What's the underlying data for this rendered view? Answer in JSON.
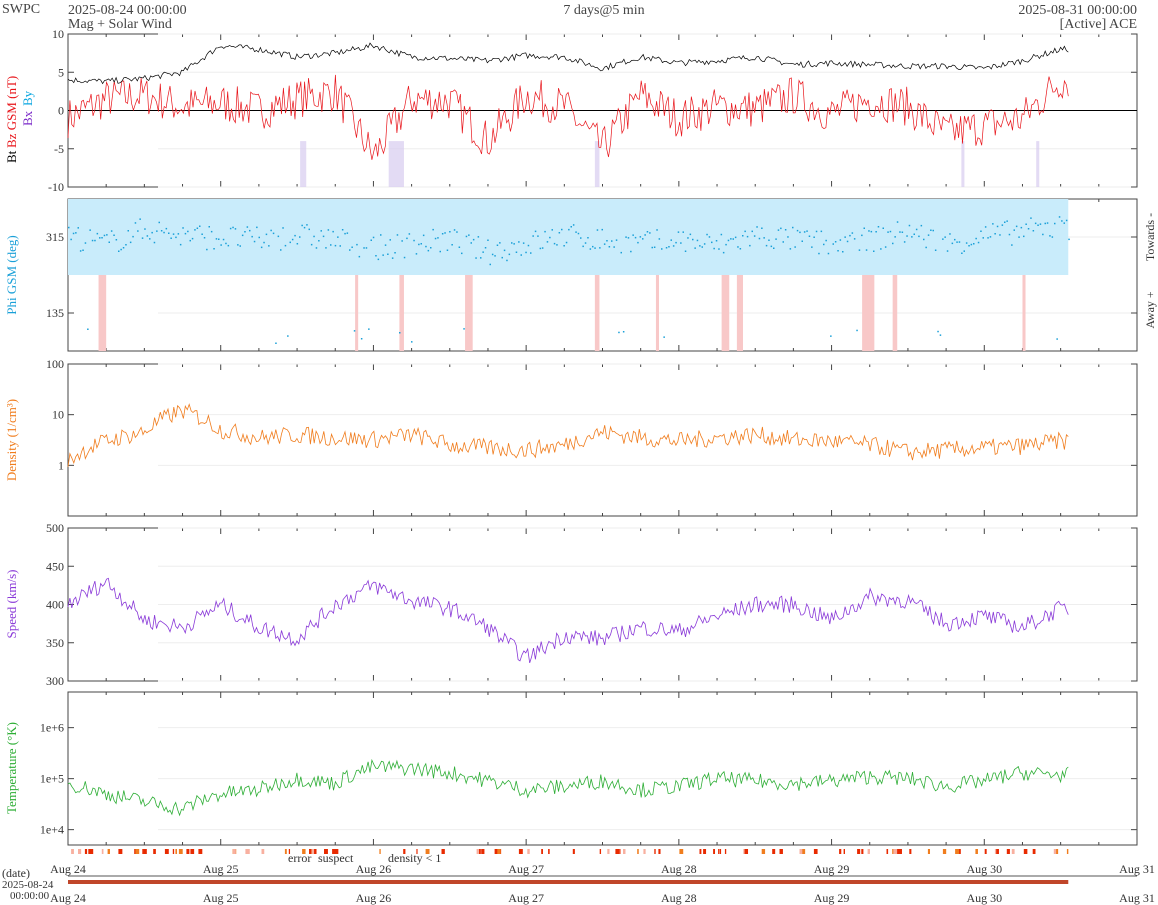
{
  "header": {
    "source": "SWPC",
    "start": "2025-08-24 00:00:00",
    "subtitle": "Mag + Solar Wind",
    "span": "7 days@5 min",
    "end": "2025-08-31 00:00:00",
    "instrument": "[Active] ACE"
  },
  "x_axis": {
    "ticks": [
      "Aug 24",
      "Aug 25",
      "Aug 26",
      "Aug 27",
      "Aug 28",
      "Aug 29",
      "Aug 30",
      "Aug 31"
    ],
    "date_label": "(date)",
    "date_value_1": "2025-08-24",
    "date_value_2": "00:00:00"
  },
  "legend": {
    "error": "error",
    "suspect": "suspect",
    "density": "density < 1"
  },
  "colors": {
    "bt": "#000000",
    "bz": "#e8141a",
    "bx": "#7a28c8",
    "by": "#0aa6e0",
    "phi": "#1aa0d8",
    "density": "#f07d1e",
    "speed": "#8a3ad8",
    "temp": "#2eae36"
  },
  "chart_data": [
    {
      "type": "line",
      "name": "mag",
      "ylabel_bt": "Bt",
      "ylabel_bz": "Bz GSM (nT)",
      "ylabel_bx": "Bx",
      "ylabel_by": "By",
      "ylim": [
        -10,
        10
      ],
      "yticks": [
        "10",
        "5",
        "0",
        "-5",
        "-10"
      ],
      "x": [
        0,
        0.25,
        0.5,
        0.75,
        1,
        1.25,
        1.5,
        1.75,
        2,
        2.25,
        2.5,
        2.75,
        3,
        3.25,
        3.5,
        3.75,
        4,
        4.25,
        4.5,
        4.75,
        5,
        5.25,
        5.5,
        5.75,
        6,
        6.25,
        6.5
      ],
      "series": [
        {
          "name": "Bt",
          "values": [
            4,
            3.8,
            4.2,
            5,
            8.5,
            8,
            7,
            7.5,
            8.5,
            7,
            6.8,
            6.5,
            7.2,
            7,
            5.5,
            7,
            6.2,
            6.5,
            7,
            6,
            6.2,
            6,
            5.8,
            5.8,
            5.5,
            6.5,
            8
          ]
        },
        {
          "name": "Bz",
          "values": [
            -1,
            1.5,
            2,
            0.5,
            1,
            0,
            1.5,
            2.5,
            -6,
            1.5,
            1.2,
            -4,
            2,
            0.5,
            -5,
            2,
            -1,
            0.5,
            0.2,
            2,
            -0.5,
            1.5,
            0.5,
            -3,
            -2,
            -1,
            4
          ]
        }
      ]
    },
    {
      "type": "scatter",
      "name": "phi",
      "ylabel": "Phi GSM (deg)",
      "ylim": [
        45,
        405
      ],
      "yticks": [
        "315",
        "135"
      ],
      "right_labels": [
        "Towards -",
        "Away +"
      ],
      "x": [
        0,
        0.25,
        0.5,
        0.75,
        1,
        1.25,
        1.5,
        1.75,
        2,
        2.25,
        2.5,
        2.75,
        3,
        3.25,
        3.5,
        3.75,
        4,
        4.25,
        4.5,
        4.75,
        5,
        5.25,
        5.5,
        5.75,
        6,
        6.25,
        6.5
      ],
      "values": [
        320,
        300,
        335,
        320,
        315,
        310,
        320,
        310,
        290,
        300,
        310,
        280,
        300,
        320,
        310,
        300,
        310,
        295,
        320,
        310,
        300,
        310,
        330,
        300,
        320,
        330,
        340
      ]
    },
    {
      "type": "line",
      "name": "density",
      "ylabel": "Density (1/cm³)",
      "yscale": "log",
      "ylim": [
        0.1,
        100
      ],
      "yticks": [
        "100",
        "10",
        "1"
      ],
      "x": [
        0,
        0.25,
        0.5,
        0.75,
        1,
        1.25,
        1.5,
        1.75,
        2,
        2.25,
        2.5,
        2.75,
        3,
        3.25,
        3.5,
        3.75,
        4,
        4.25,
        4.5,
        4.75,
        5,
        5.25,
        5.5,
        5.75,
        6,
        6.25,
        6.5
      ],
      "values": [
        1.2,
        3,
        4.5,
        12,
        5,
        3.5,
        4,
        3.5,
        3.2,
        4,
        2.5,
        2.2,
        2,
        2.5,
        4.5,
        3.5,
        3,
        3.5,
        4,
        3.2,
        3,
        2.5,
        1.8,
        2,
        2.2,
        2.4,
        3
      ]
    },
    {
      "type": "line",
      "name": "speed",
      "ylabel": "Speed (km/s)",
      "ylim": [
        300,
        500
      ],
      "yticks": [
        "500",
        "450",
        "400",
        "350",
        "300"
      ],
      "x": [
        0,
        0.25,
        0.5,
        0.75,
        1,
        1.25,
        1.5,
        1.75,
        2,
        2.25,
        2.5,
        2.75,
        3,
        3.25,
        3.5,
        3.75,
        4,
        4.25,
        4.5,
        4.75,
        5,
        5.25,
        5.5,
        5.75,
        6,
        6.25,
        6.5
      ],
      "values": [
        400,
        430,
        380,
        370,
        400,
        370,
        355,
        400,
        425,
        405,
        395,
        370,
        330,
        360,
        355,
        370,
        365,
        385,
        400,
        400,
        380,
        410,
        405,
        375,
        385,
        370,
        395
      ]
    },
    {
      "type": "line",
      "name": "temperature",
      "ylabel": "Temperature (°K)",
      "yscale": "log",
      "ylim": [
        5000,
        5000000
      ],
      "yticks": [
        "1e+6",
        "1e+5",
        "1e+4"
      ],
      "x": [
        0,
        0.25,
        0.5,
        0.75,
        1,
        1.25,
        1.5,
        1.75,
        2,
        2.25,
        2.5,
        2.75,
        3,
        3.25,
        3.5,
        3.75,
        4,
        4.25,
        4.5,
        4.75,
        5,
        5.25,
        5.5,
        5.75,
        6,
        6.25,
        6.5
      ],
      "values": [
        80000,
        50000,
        35000,
        25000,
        50000,
        60000,
        100000,
        80000,
        170000,
        160000,
        130000,
        90000,
        60000,
        70000,
        90000,
        60000,
        70000,
        100000,
        90000,
        80000,
        90000,
        110000,
        100000,
        70000,
        90000,
        130000,
        120000
      ]
    }
  ]
}
